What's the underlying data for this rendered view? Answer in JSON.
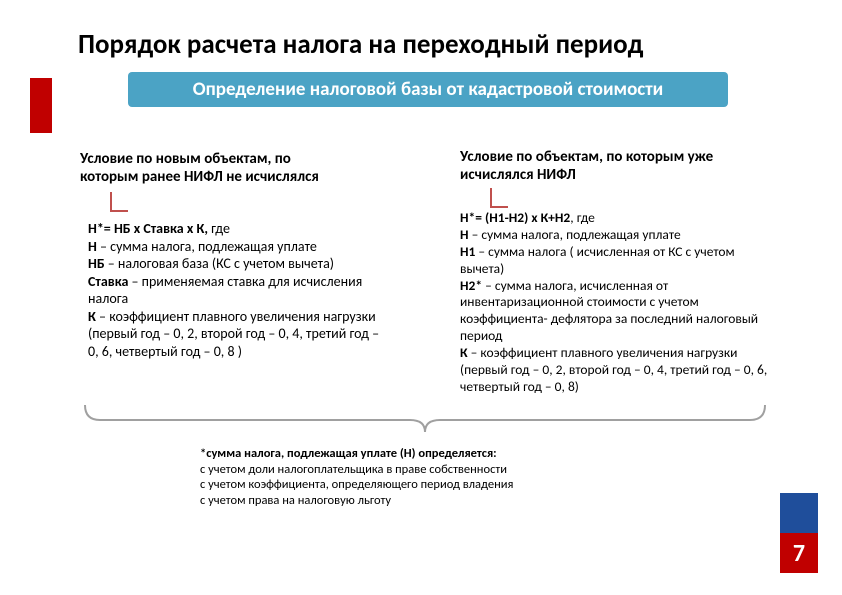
{
  "title": "Порядок расчета налога на переходный период",
  "subtitle": "Определение налоговой базы от кадастровой стоимости",
  "colors": {
    "red": "#c00000",
    "teal": "#4ba3c5",
    "blue": "#1f4e9b",
    "connector": "#c0504d",
    "brace": "#a0a0a0"
  },
  "left": {
    "heading": "Условие по новым объектам, по которым ранее НИФЛ не исчислялся",
    "body": "<b>Н*= НБ х Ставка х К,</b> где<br><b>Н</b> – сумма налога, подлежащая уплате<br><b>НБ</b> – налоговая база (КС с учетом вычета)<br><b>Ставка</b> – применяемая ставка для исчисления налога<br><b>К</b> – коэффициент плавного увеличения нагрузки<br>(первый год – 0, 2, второй год – 0, 4, третий год – 0, 6, четвертый год – 0, 8 )"
  },
  "right": {
    "heading": "Условие по объектам, по которым уже исчислялся НИФЛ",
    "body": "<b>Н*= (Н1-Н2) х К+Н2</b>, где<br><b>Н</b> – сумма налога, подлежащая уплате<br><b>Н1</b> – сумма налога ( исчисленная от КС с учетом вычета)<br><b>Н2*</b> – сумма налога, исчисленная от инвентаризационной стоимости с учетом коэффициента- дефлятора за последний налоговый период<br><b>К</b> – коэффициент плавного увеличения нагрузки<br>(первый год – 0, 2, второй год – 0, 4, третий год – 0, 6, четвертый год – 0, 8)"
  },
  "footnote": {
    "bold": "*сумма налога, подлежащая уплате (Н) определяется:",
    "lines": [
      "с учетом доли налогоплательщика в праве собственности",
      "с учетом коэффициента, определяющего период владения",
      "с учетом права на налоговую льготу"
    ]
  },
  "page_number": "7"
}
